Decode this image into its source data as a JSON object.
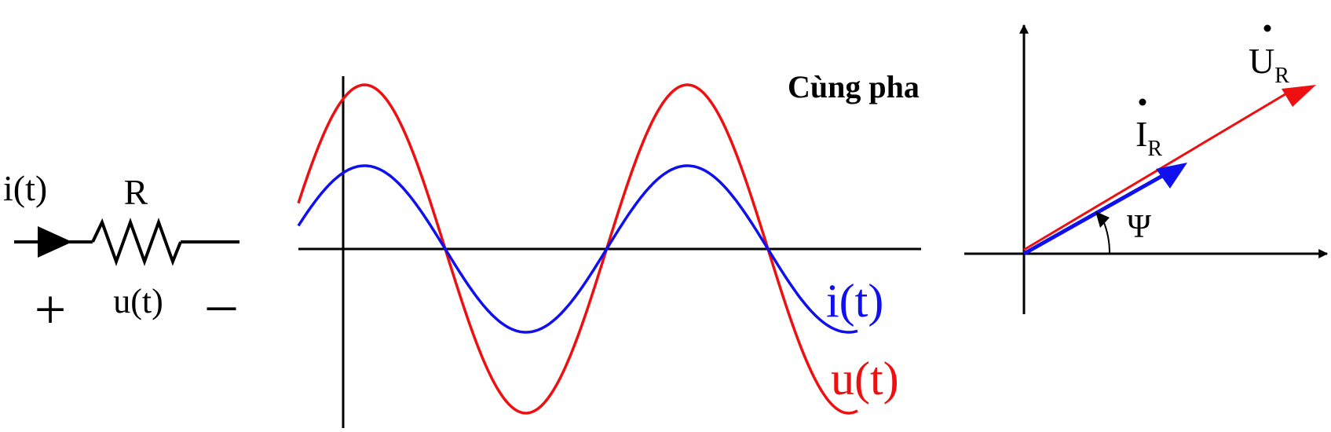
{
  "circuit": {
    "current_label": "i(t)",
    "resistor_label": "R",
    "voltage_label": "u(t)",
    "plus_sign": "+",
    "minus_sign": "–"
  },
  "waveform": {
    "phase_label": "Cùng pha",
    "current_label": "i(t)",
    "voltage_label": "u(t)",
    "current_color": "#1010ee",
    "voltage_color": "#ee1010"
  },
  "phasor": {
    "voltage_letter": "U",
    "voltage_subscript": "R",
    "current_letter": "I",
    "current_subscript": "R",
    "angle_label": "Ψ"
  }
}
